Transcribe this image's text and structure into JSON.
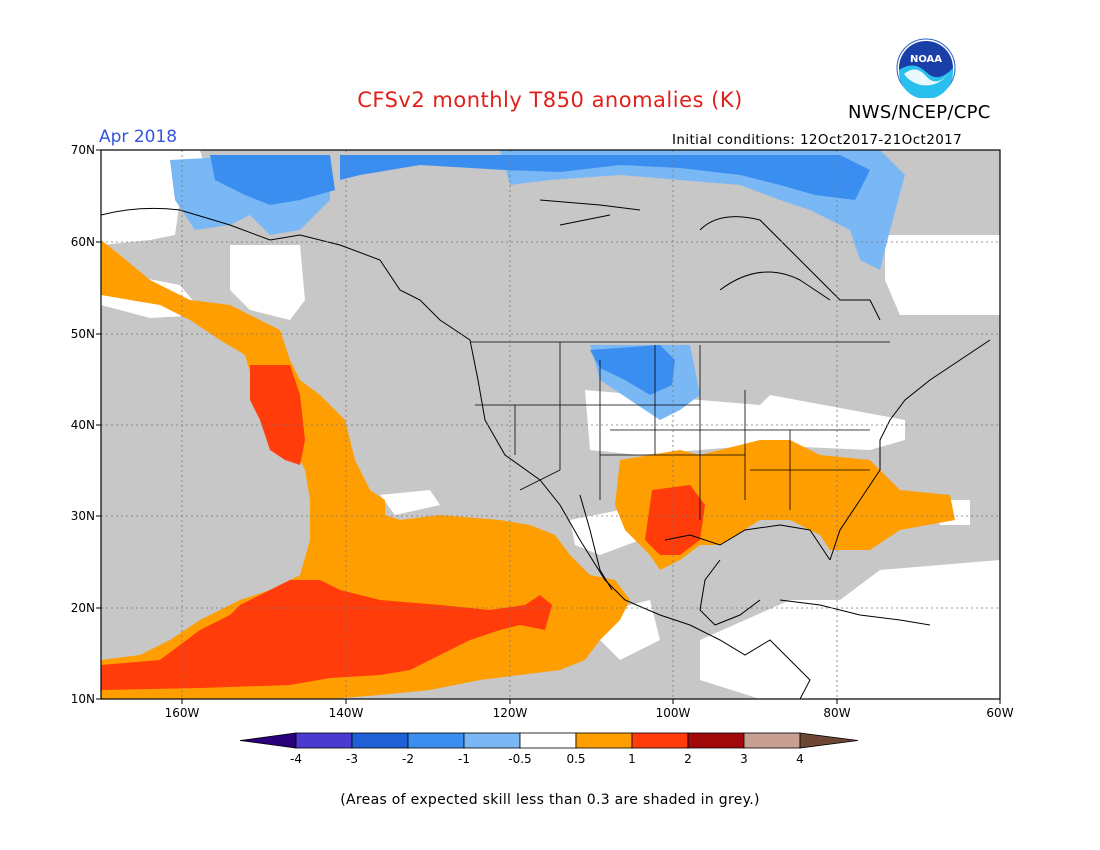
{
  "title": "CFSv2 monthly T850 anomalies (K)",
  "org": "NWS/NCEP/CPC",
  "logo": {
    "icon": "noaa-logo-icon",
    "text": "NOAA"
  },
  "target_month": "Apr 2018",
  "initial_conditions": "Initial conditions: 12Oct2017-21Oct2017",
  "lat_labels": [
    "70N",
    "60N",
    "50N",
    "40N",
    "30N",
    "20N",
    "10N"
  ],
  "lon_labels": [
    "160W",
    "140W",
    "120W",
    "100W",
    "80W",
    "60W"
  ],
  "legend": {
    "labels": [
      "-4",
      "-3",
      "-2",
      "-1",
      "-0.5",
      "0.5",
      "1",
      "2",
      "3",
      "4"
    ],
    "colors": [
      "#2a007a",
      "#4a3ad0",
      "#1f60d6",
      "#3a8ef0",
      "#7ab8f5",
      "#ffffff",
      "#ff9e00",
      "#ff3c0a",
      "#a00a0a",
      "#c8a092",
      "#6e4634"
    ]
  },
  "anomaly_colors": {
    "grey_low_skill": "#c7c7c7",
    "neutral": "#ffffff",
    "cold_weak": "#7ab8f5",
    "cold": "#3a8ef0",
    "warm": "#ff9e00",
    "warm_strong": "#ff3c0a"
  },
  "footnote": "(Areas of expected skill less than 0.3 are shaded in grey.)"
}
